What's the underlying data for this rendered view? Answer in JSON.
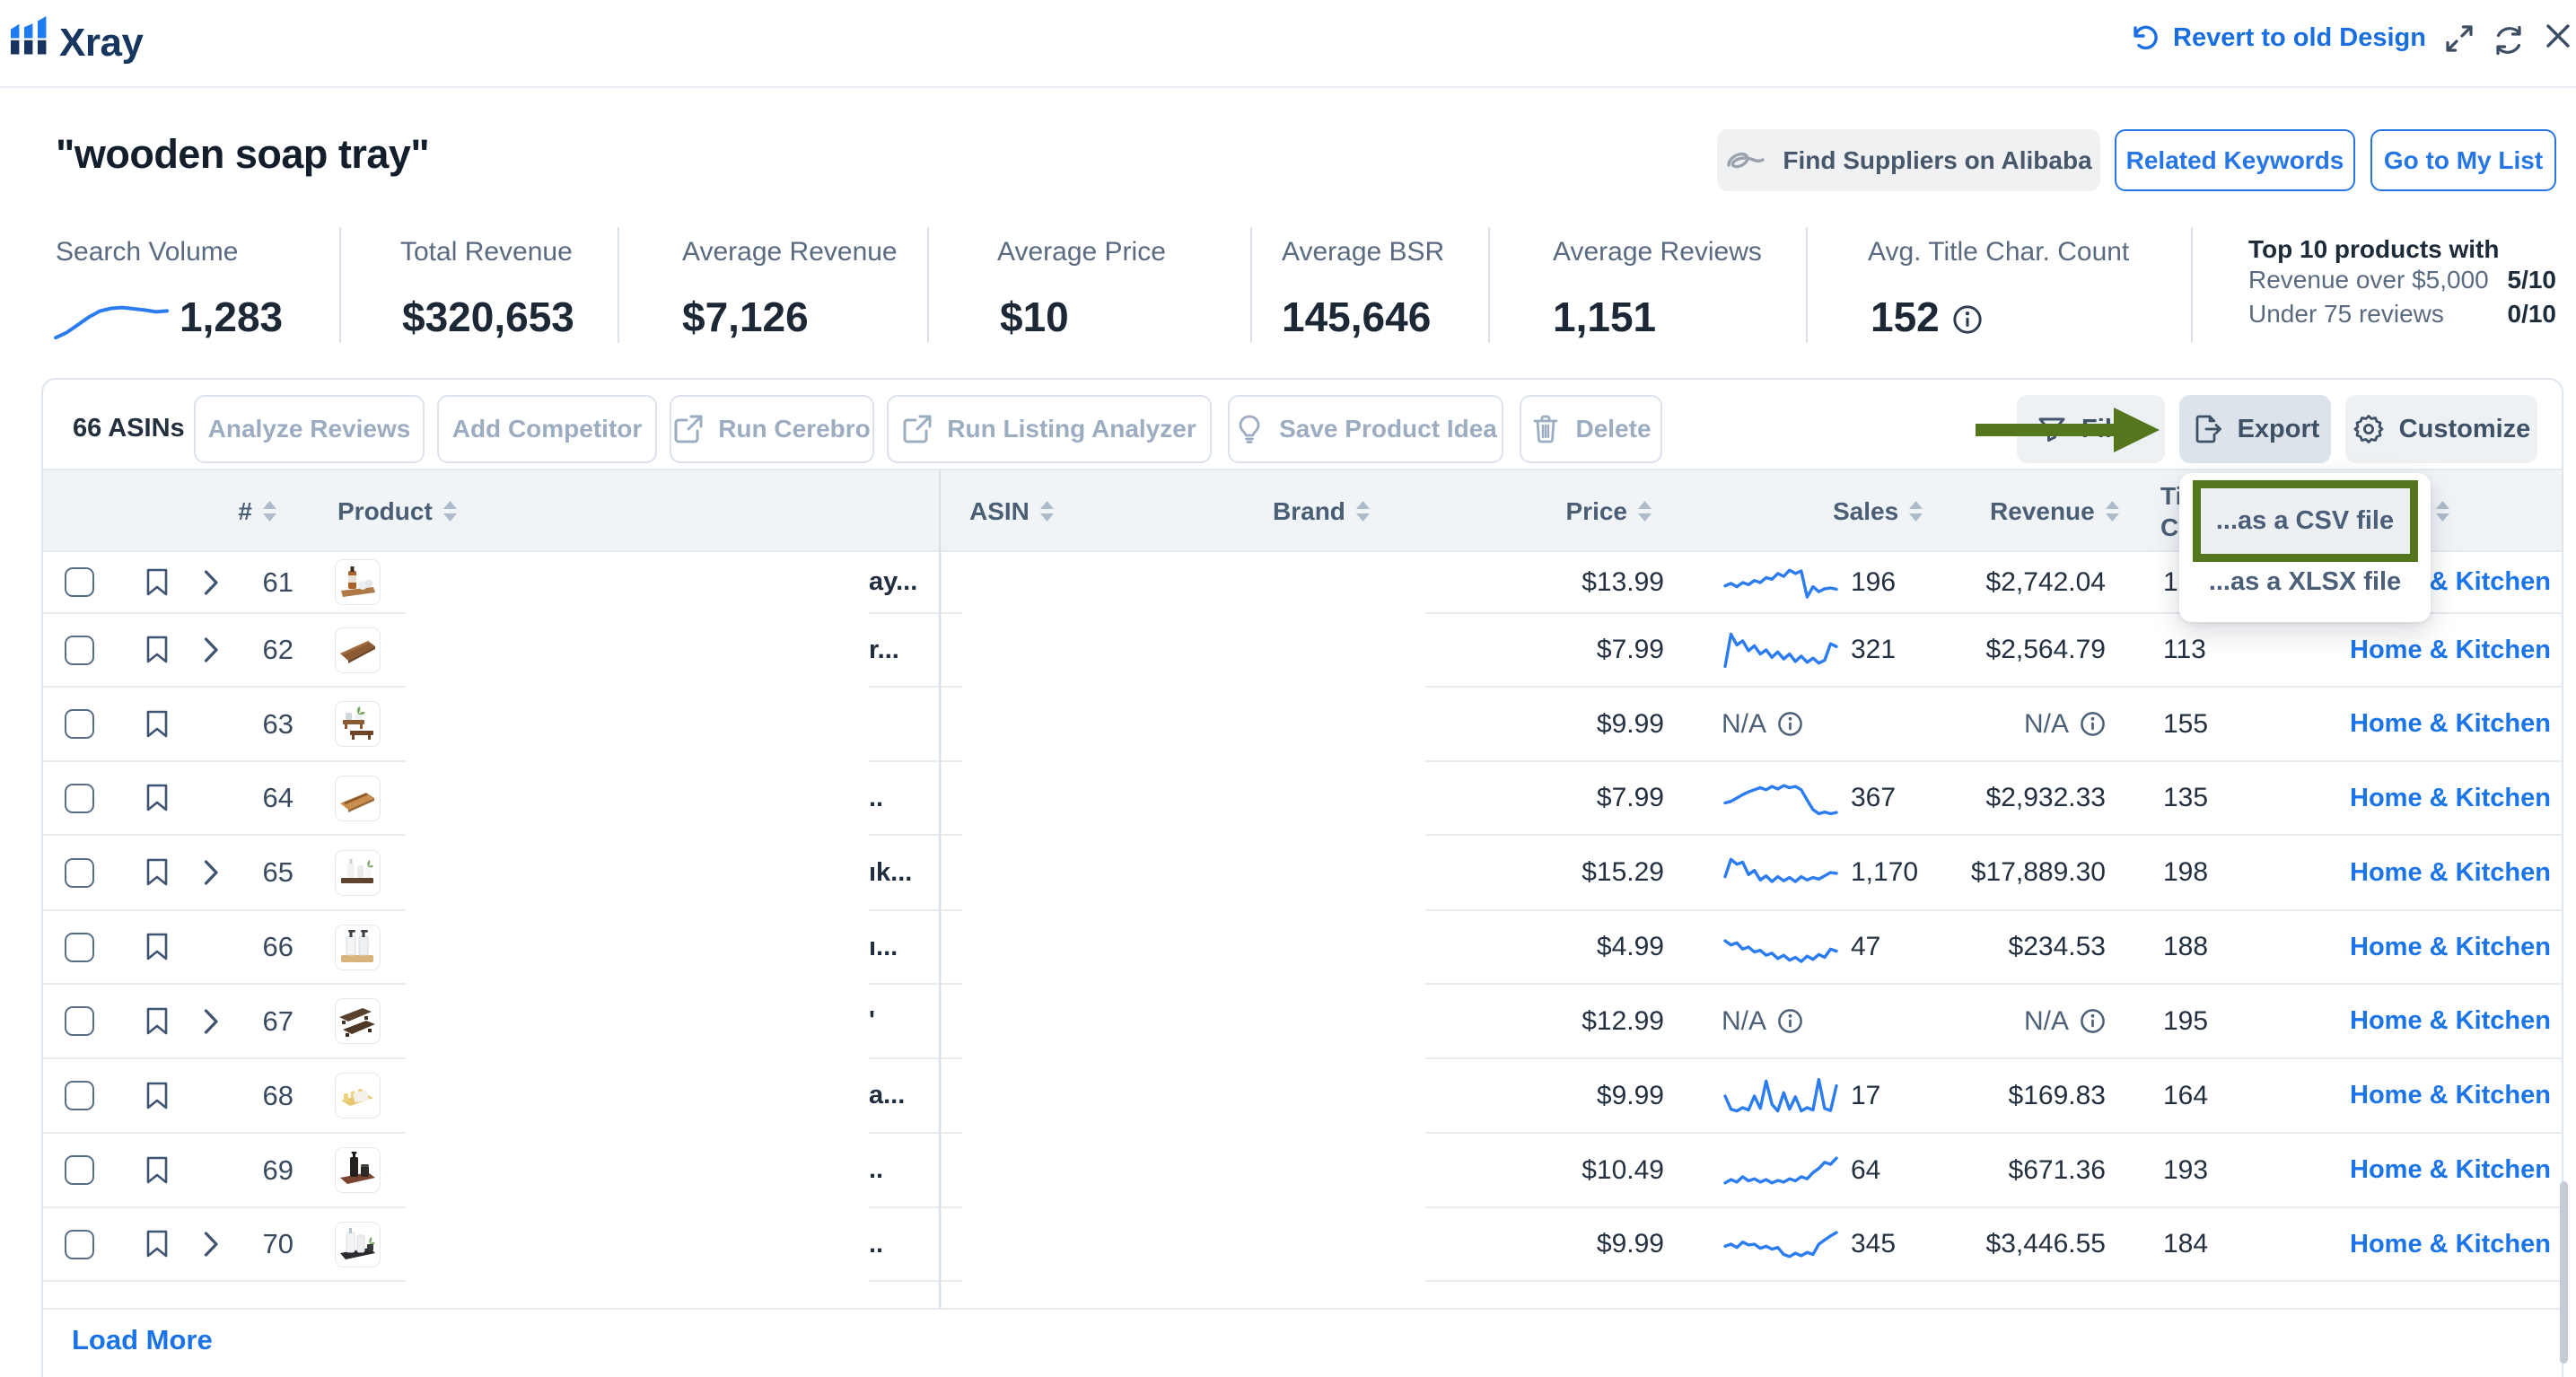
{
  "window": {
    "app_name": "Xray",
    "revert_label": "Revert to old Design"
  },
  "header": {
    "keyword": "\"wooden soap tray\"",
    "buttons": {
      "alibaba": "Find Suppliers on Alibaba",
      "related_keywords": "Related Keywords",
      "go_to_my_list": "Go to My List"
    }
  },
  "stats": {
    "items": [
      {
        "label": "Search Volume",
        "value": "1,283",
        "spark": [
          0.92,
          0.8,
          0.62,
          0.44,
          0.3,
          0.24,
          0.22,
          0.25,
          0.28,
          0.32,
          0.3
        ]
      },
      {
        "label": "Total Revenue",
        "value": "$320,653"
      },
      {
        "label": "Average Revenue",
        "value": "$7,126"
      },
      {
        "label": "Average Price",
        "value": "$10"
      },
      {
        "label": "Average BSR",
        "value": "145,646"
      },
      {
        "label": "Average Reviews",
        "value": "1,151"
      },
      {
        "label": "Avg. Title Char. Count",
        "value": "152",
        "info": true
      }
    ],
    "top10": {
      "title": "Top 10 products with",
      "lines": [
        {
          "label": "Revenue over $5,000",
          "value": "5/10"
        },
        {
          "label": "Under 75 reviews",
          "value": "0/10"
        }
      ]
    }
  },
  "toolbar": {
    "asin_count": "66 ASINs",
    "left_buttons": [
      {
        "label": "Analyze Reviews",
        "icon": null
      },
      {
        "label": "Add Competitor",
        "icon": null
      },
      {
        "label": "Run Cerebro",
        "icon": "external-link"
      },
      {
        "label": "Run Listing Analyzer",
        "icon": "external-link"
      },
      {
        "label": "Save Product Idea",
        "icon": "bulb"
      },
      {
        "label": "Delete",
        "icon": "trash"
      }
    ],
    "filter_label": "Filter",
    "export_label": "Export",
    "customize_label": "Customize"
  },
  "export_menu": {
    "csv_label": "...as a CSV file",
    "xlsx_label": "...as a XLSX file"
  },
  "table": {
    "columns": {
      "number": "#",
      "product": "Product",
      "asin": "ASIN",
      "brand": "Brand",
      "price": "Price",
      "sales": "Sales",
      "revenue": "Revenue",
      "title_char_count": "Title Char. Count"
    },
    "na_label": "N/A",
    "rows": [
      {
        "num": "61",
        "expandable": true,
        "thumb": "amber-bottle-board",
        "fragment": "ay...",
        "price": "$13.99",
        "sales": "196",
        "revenue": "$2,742.04",
        "title_chars": "1",
        "category": "Home & Kitchen",
        "spark": [
          0.58,
          0.52,
          0.6,
          0.5,
          0.55,
          0.45,
          0.5,
          0.38,
          0.42,
          0.28,
          0.35,
          0.2,
          0.28,
          0.22,
          0.85,
          0.6,
          0.72,
          0.65,
          0.63,
          0.66
        ]
      },
      {
        "num": "62",
        "expandable": true,
        "thumb": "wood-tray",
        "fragment": "r...",
        "price": "$7.99",
        "sales": "321",
        "revenue": "$2,564.79",
        "title_chars": "113",
        "category": "Home & Kitchen",
        "spark": [
          0.9,
          0.12,
          0.38,
          0.28,
          0.52,
          0.4,
          0.6,
          0.5,
          0.68,
          0.55,
          0.72,
          0.6,
          0.78,
          0.65,
          0.8,
          0.7,
          0.82,
          0.75,
          0.35,
          0.42
        ]
      },
      {
        "num": "63",
        "expandable": false,
        "thumb": "risers-plant",
        "fragment": "",
        "price": "$9.99",
        "sales": null,
        "revenue": null,
        "title_chars": "155",
        "category": "Home & Kitchen",
        "spark": null
      },
      {
        "num": "64",
        "expandable": false,
        "thumb": "slat-dish",
        "fragment": "..",
        "price": "$7.99",
        "sales": "367",
        "revenue": "$2,932.33",
        "title_chars": "135",
        "category": "Home & Kitchen",
        "spark": [
          0.62,
          0.58,
          0.5,
          0.42,
          0.35,
          0.3,
          0.25,
          0.3,
          0.22,
          0.28,
          0.2,
          0.25,
          0.22,
          0.3,
          0.55,
          0.78,
          0.88,
          0.84,
          0.88,
          0.85
        ]
      },
      {
        "num": "65",
        "expandable": true,
        "thumb": "shelf-bottles",
        "fragment": "ık...",
        "price": "$15.29",
        "sales": "1,170",
        "revenue": "$17,889.30",
        "title_chars": "198",
        "category": "Home & Kitchen",
        "spark": [
          0.6,
          0.18,
          0.3,
          0.25,
          0.55,
          0.45,
          0.68,
          0.58,
          0.72,
          0.6,
          0.7,
          0.62,
          0.72,
          0.6,
          0.68,
          0.62,
          0.66,
          0.58,
          0.5,
          0.52
        ]
      },
      {
        "num": "66",
        "expandable": false,
        "thumb": "dispensers-bamboo",
        "fragment": "ı...",
        "price": "$4.99",
        "sales": "47",
        "revenue": "$234.53",
        "title_chars": "188",
        "category": "Home & Kitchen",
        "spark": [
          0.35,
          0.45,
          0.4,
          0.55,
          0.5,
          0.62,
          0.58,
          0.7,
          0.65,
          0.78,
          0.7,
          0.82,
          0.75,
          0.85,
          0.72,
          0.8,
          0.68,
          0.75,
          0.55,
          0.6
        ]
      },
      {
        "num": "67",
        "expandable": true,
        "thumb": "dark-trays",
        "fragment": "'",
        "price": "$12.99",
        "sales": null,
        "revenue": null,
        "title_chars": "195",
        "category": "Home & Kitchen",
        "spark": null
      },
      {
        "num": "68",
        "expandable": false,
        "thumb": "soap-dish",
        "fragment": "a...",
        "price": "$9.99",
        "sales": "17",
        "revenue": "$169.83",
        "title_chars": "164",
        "category": "Home & Kitchen",
        "spark": [
          0.5,
          0.82,
          0.86,
          0.78,
          0.84,
          0.5,
          0.8,
          0.14,
          0.7,
          0.86,
          0.42,
          0.82,
          0.52,
          0.86,
          0.78,
          0.84,
          0.1,
          0.8,
          0.85,
          0.25
        ]
      },
      {
        "num": "69",
        "expandable": false,
        "thumb": "dark-bottles-tray",
        "fragment": "..",
        "price": "$10.49",
        "sales": "64",
        "revenue": "$671.36",
        "title_chars": "193",
        "category": "Home & Kitchen",
        "spark": [
          0.8,
          0.72,
          0.78,
          0.65,
          0.75,
          0.7,
          0.78,
          0.72,
          0.8,
          0.74,
          0.78,
          0.7,
          0.75,
          0.65,
          0.7,
          0.55,
          0.45,
          0.3,
          0.35,
          0.2
        ]
      },
      {
        "num": "70",
        "expandable": true,
        "thumb": "white-bottles-dark-tray",
        "fragment": "..",
        "price": "$9.99",
        "sales": "345",
        "revenue": "$3,446.55",
        "title_chars": "184",
        "category": "Home & Kitchen",
        "spark": [
          0.55,
          0.5,
          0.58,
          0.45,
          0.52,
          0.5,
          0.6,
          0.55,
          0.62,
          0.58,
          0.75,
          0.8,
          0.72,
          0.78,
          0.7,
          0.75,
          0.5,
          0.4,
          0.3,
          0.22
        ]
      }
    ]
  },
  "footer": {
    "load_more": "Load More"
  },
  "colors": {
    "annotation_green": "#54771d",
    "sparkline_blue": "#2b7cf0",
    "link_blue": "#1b74e8",
    "brand_navy": "#16355f"
  }
}
